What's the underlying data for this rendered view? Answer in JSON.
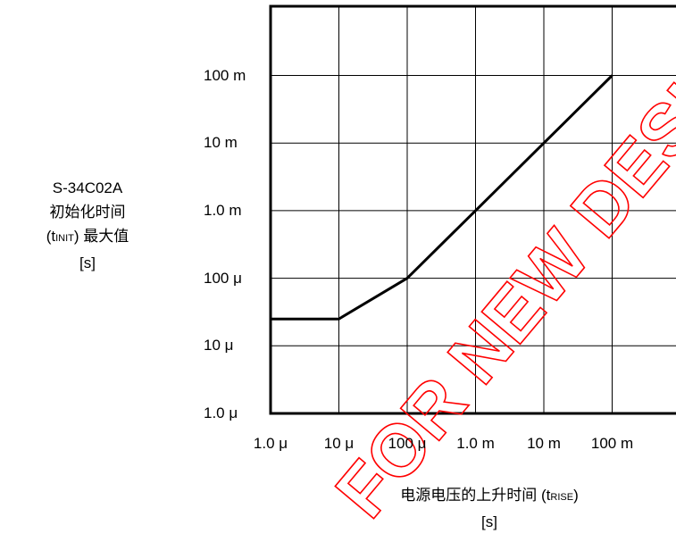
{
  "y_axis_label": {
    "line1": "S-34C02A",
    "line2": "初始化时间",
    "line3_prefix": "(t",
    "line3_sub": "INIT",
    "line3_suffix": ")  最大值",
    "line4": "[s]"
  },
  "x_axis_label": {
    "line1_prefix": "电源电压的上升时间  (t",
    "line1_sub": "RISE",
    "line1_suffix": ")",
    "line2": "[s]"
  },
  "watermark": "FOR NEW DESIGN",
  "colors": {
    "line": "#000000",
    "grid": "#000000",
    "watermark": "#ff0000"
  },
  "chart_data": {
    "type": "line",
    "title": "",
    "xscale": "log",
    "yscale": "log",
    "xlim": [
      1e-06,
      1
    ],
    "ylim": [
      1e-06,
      1
    ],
    "xticks": [
      1e-06,
      1e-05,
      0.0001,
      0.001,
      0.01,
      0.1
    ],
    "xtick_labels": [
      "1.0 μ",
      "10 μ",
      "100 μ",
      "1.0 m",
      "10 m",
      "100 m"
    ],
    "yticks": [
      1e-06,
      1e-05,
      0.0001,
      0.001,
      0.01,
      0.1
    ],
    "ytick_labels": [
      "1.0 μ",
      "10 μ",
      "100 μ",
      "1.0 m",
      "10 m",
      "100 m"
    ],
    "grid": true,
    "series": [
      {
        "x": [
          1e-06,
          1e-05,
          0.0001,
          0.001,
          0.01,
          0.1
        ],
        "y": [
          2.5e-05,
          2.5e-05,
          0.0001,
          0.001,
          0.01,
          0.1
        ]
      }
    ]
  }
}
